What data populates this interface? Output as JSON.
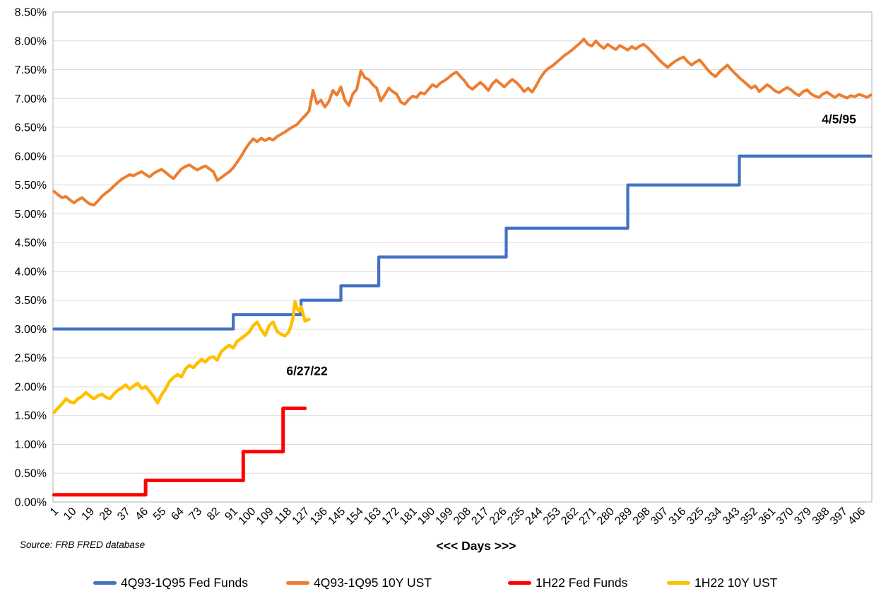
{
  "chart_data": {
    "type": "line",
    "title": "",
    "xlabel": "<<< Days >>>",
    "ylabel": "",
    "source": "Source: FRB FRED database",
    "grid": true,
    "legend_position": "bottom",
    "ylim": [
      0,
      8.5
    ],
    "xlim": [
      1,
      411
    ],
    "y_tick_labels": [
      "8.50%",
      "8.00%",
      "7.50%",
      "7.00%",
      "6.50%",
      "6.00%",
      "5.50%",
      "5.00%",
      "4.50%",
      "4.00%",
      "3.50%",
      "3.00%",
      "2.50%",
      "2.00%",
      "1.50%",
      "1.00%",
      "0.50%",
      "0.00%"
    ],
    "x_tick_labels": [
      1,
      10,
      19,
      28,
      37,
      46,
      55,
      64,
      73,
      82,
      91,
      100,
      109,
      118,
      127,
      136,
      145,
      154,
      163,
      172,
      181,
      190,
      199,
      208,
      217,
      226,
      235,
      244,
      253,
      262,
      271,
      280,
      289,
      298,
      307,
      316,
      325,
      334,
      343,
      352,
      361,
      370,
      379,
      388,
      397,
      406
    ],
    "annotations": [
      {
        "text": "4/5/95",
        "day": 395,
        "value": 6.63
      },
      {
        "text": "6/27/22",
        "day": 128,
        "value": 2.27
      }
    ],
    "series": [
      {
        "name": "4Q93-1Q95 Fed Funds",
        "color": "#4472C4",
        "width": 4.25,
        "kind": "step",
        "points": [
          [
            1,
            3.0
          ],
          [
            91,
            3.0
          ],
          [
            91,
            3.25
          ],
          [
            125,
            3.25
          ],
          [
            125,
            3.5
          ],
          [
            145,
            3.5
          ],
          [
            145,
            3.75
          ],
          [
            164,
            3.75
          ],
          [
            164,
            4.25
          ],
          [
            228,
            4.25
          ],
          [
            228,
            4.75
          ],
          [
            289,
            4.75
          ],
          [
            289,
            5.5
          ],
          [
            345,
            5.5
          ],
          [
            345,
            6.0
          ],
          [
            411,
            6.0
          ]
        ]
      },
      {
        "name": "4Q93-1Q95 10Y UST",
        "color": "#ED7D31",
        "width": 4,
        "kind": "line",
        "points": [
          [
            1,
            5.39
          ],
          [
            3,
            5.33
          ],
          [
            5,
            5.28
          ],
          [
            7,
            5.3
          ],
          [
            9,
            5.24
          ],
          [
            11,
            5.19
          ],
          [
            13,
            5.24
          ],
          [
            15,
            5.28
          ],
          [
            17,
            5.22
          ],
          [
            19,
            5.17
          ],
          [
            21,
            5.15
          ],
          [
            23,
            5.22
          ],
          [
            25,
            5.3
          ],
          [
            27,
            5.36
          ],
          [
            29,
            5.41
          ],
          [
            31,
            5.48
          ],
          [
            33,
            5.54
          ],
          [
            35,
            5.6
          ],
          [
            37,
            5.64
          ],
          [
            39,
            5.68
          ],
          [
            41,
            5.66
          ],
          [
            43,
            5.7
          ],
          [
            45,
            5.73
          ],
          [
            47,
            5.68
          ],
          [
            49,
            5.64
          ],
          [
            51,
            5.7
          ],
          [
            53,
            5.74
          ],
          [
            55,
            5.77
          ],
          [
            57,
            5.72
          ],
          [
            59,
            5.66
          ],
          [
            61,
            5.61
          ],
          [
            63,
            5.7
          ],
          [
            65,
            5.78
          ],
          [
            67,
            5.82
          ],
          [
            69,
            5.85
          ],
          [
            71,
            5.8
          ],
          [
            73,
            5.76
          ],
          [
            75,
            5.8
          ],
          [
            77,
            5.83
          ],
          [
            79,
            5.78
          ],
          [
            81,
            5.73
          ],
          [
            83,
            5.58
          ],
          [
            85,
            5.63
          ],
          [
            87,
            5.68
          ],
          [
            89,
            5.73
          ],
          [
            91,
            5.8
          ],
          [
            93,
            5.9
          ],
          [
            95,
            6.0
          ],
          [
            97,
            6.12
          ],
          [
            99,
            6.22
          ],
          [
            101,
            6.3
          ],
          [
            103,
            6.25
          ],
          [
            105,
            6.31
          ],
          [
            107,
            6.27
          ],
          [
            109,
            6.31
          ],
          [
            111,
            6.28
          ],
          [
            113,
            6.34
          ],
          [
            115,
            6.38
          ],
          [
            117,
            6.42
          ],
          [
            119,
            6.47
          ],
          [
            121,
            6.51
          ],
          [
            123,
            6.55
          ],
          [
            125,
            6.63
          ],
          [
            127,
            6.7
          ],
          [
            129,
            6.78
          ],
          [
            131,
            7.14
          ],
          [
            133,
            6.91
          ],
          [
            135,
            6.97
          ],
          [
            137,
            6.85
          ],
          [
            139,
            6.95
          ],
          [
            141,
            7.14
          ],
          [
            143,
            7.06
          ],
          [
            145,
            7.2
          ],
          [
            147,
            6.97
          ],
          [
            149,
            6.88
          ],
          [
            151,
            7.08
          ],
          [
            153,
            7.16
          ],
          [
            155,
            7.48
          ],
          [
            157,
            7.36
          ],
          [
            159,
            7.33
          ],
          [
            161,
            7.24
          ],
          [
            163,
            7.18
          ],
          [
            165,
            6.96
          ],
          [
            167,
            7.06
          ],
          [
            169,
            7.18
          ],
          [
            171,
            7.12
          ],
          [
            173,
            7.08
          ],
          [
            175,
            6.94
          ],
          [
            177,
            6.9
          ],
          [
            179,
            6.98
          ],
          [
            181,
            7.04
          ],
          [
            183,
            7.02
          ],
          [
            185,
            7.1
          ],
          [
            187,
            7.08
          ],
          [
            189,
            7.16
          ],
          [
            191,
            7.24
          ],
          [
            193,
            7.2
          ],
          [
            195,
            7.27
          ],
          [
            197,
            7.31
          ],
          [
            199,
            7.36
          ],
          [
            201,
            7.42
          ],
          [
            203,
            7.46
          ],
          [
            205,
            7.38
          ],
          [
            207,
            7.31
          ],
          [
            209,
            7.21
          ],
          [
            211,
            7.16
          ],
          [
            213,
            7.22
          ],
          [
            215,
            7.28
          ],
          [
            217,
            7.22
          ],
          [
            219,
            7.14
          ],
          [
            221,
            7.25
          ],
          [
            223,
            7.32
          ],
          [
            225,
            7.26
          ],
          [
            227,
            7.2
          ],
          [
            229,
            7.27
          ],
          [
            231,
            7.33
          ],
          [
            233,
            7.28
          ],
          [
            235,
            7.21
          ],
          [
            237,
            7.12
          ],
          [
            239,
            7.18
          ],
          [
            241,
            7.11
          ],
          [
            243,
            7.22
          ],
          [
            245,
            7.35
          ],
          [
            247,
            7.45
          ],
          [
            249,
            7.52
          ],
          [
            251,
            7.56
          ],
          [
            253,
            7.62
          ],
          [
            255,
            7.68
          ],
          [
            257,
            7.74
          ],
          [
            259,
            7.79
          ],
          [
            261,
            7.84
          ],
          [
            263,
            7.9
          ],
          [
            265,
            7.96
          ],
          [
            267,
            8.03
          ],
          [
            269,
            7.94
          ],
          [
            271,
            7.91
          ],
          [
            273,
            8.0
          ],
          [
            275,
            7.92
          ],
          [
            277,
            7.87
          ],
          [
            279,
            7.94
          ],
          [
            281,
            7.89
          ],
          [
            283,
            7.85
          ],
          [
            285,
            7.92
          ],
          [
            287,
            7.88
          ],
          [
            289,
            7.84
          ],
          [
            291,
            7.9
          ],
          [
            293,
            7.86
          ],
          [
            295,
            7.91
          ],
          [
            297,
            7.94
          ],
          [
            299,
            7.88
          ],
          [
            301,
            7.81
          ],
          [
            303,
            7.74
          ],
          [
            305,
            7.66
          ],
          [
            307,
            7.6
          ],
          [
            309,
            7.54
          ],
          [
            311,
            7.6
          ],
          [
            313,
            7.65
          ],
          [
            315,
            7.69
          ],
          [
            317,
            7.72
          ],
          [
            319,
            7.64
          ],
          [
            321,
            7.58
          ],
          [
            323,
            7.63
          ],
          [
            325,
            7.67
          ],
          [
            327,
            7.59
          ],
          [
            329,
            7.5
          ],
          [
            331,
            7.43
          ],
          [
            333,
            7.38
          ],
          [
            335,
            7.46
          ],
          [
            337,
            7.52
          ],
          [
            339,
            7.58
          ],
          [
            341,
            7.5
          ],
          [
            343,
            7.43
          ],
          [
            345,
            7.36
          ],
          [
            347,
            7.3
          ],
          [
            349,
            7.24
          ],
          [
            351,
            7.18
          ],
          [
            353,
            7.22
          ],
          [
            355,
            7.12
          ],
          [
            357,
            7.18
          ],
          [
            359,
            7.24
          ],
          [
            361,
            7.19
          ],
          [
            363,
            7.13
          ],
          [
            365,
            7.1
          ],
          [
            367,
            7.15
          ],
          [
            369,
            7.19
          ],
          [
            371,
            7.15
          ],
          [
            373,
            7.09
          ],
          [
            375,
            7.05
          ],
          [
            377,
            7.12
          ],
          [
            379,
            7.15
          ],
          [
            381,
            7.08
          ],
          [
            383,
            7.04
          ],
          [
            385,
            7.02
          ],
          [
            387,
            7.08
          ],
          [
            389,
            7.11
          ],
          [
            391,
            7.06
          ],
          [
            393,
            7.02
          ],
          [
            395,
            7.07
          ],
          [
            397,
            7.04
          ],
          [
            399,
            7.01
          ],
          [
            401,
            7.05
          ],
          [
            403,
            7.03
          ],
          [
            405,
            7.07
          ],
          [
            407,
            7.05
          ],
          [
            409,
            7.02
          ],
          [
            411,
            7.06
          ]
        ]
      },
      {
        "name": "1H22 Fed Funds",
        "color": "#FF0000",
        "width": 5,
        "kind": "step",
        "points": [
          [
            1,
            0.125
          ],
          [
            47,
            0.125
          ],
          [
            47,
            0.375
          ],
          [
            96,
            0.375
          ],
          [
            96,
            0.875
          ],
          [
            116,
            0.875
          ],
          [
            116,
            1.625
          ],
          [
            127,
            1.625
          ]
        ]
      },
      {
        "name": "1H22 10Y UST",
        "color": "#FFC000",
        "width": 4.5,
        "kind": "line",
        "points": [
          [
            1,
            1.55
          ],
          [
            3,
            1.63
          ],
          [
            5,
            1.7
          ],
          [
            7,
            1.79
          ],
          [
            9,
            1.74
          ],
          [
            11,
            1.72
          ],
          [
            13,
            1.79
          ],
          [
            15,
            1.83
          ],
          [
            17,
            1.9
          ],
          [
            19,
            1.84
          ],
          [
            21,
            1.79
          ],
          [
            23,
            1.84
          ],
          [
            25,
            1.87
          ],
          [
            27,
            1.82
          ],
          [
            29,
            1.79
          ],
          [
            31,
            1.87
          ],
          [
            33,
            1.94
          ],
          [
            35,
            1.98
          ],
          [
            37,
            2.03
          ],
          [
            39,
            1.96
          ],
          [
            41,
            2.01
          ],
          [
            43,
            2.06
          ],
          [
            45,
            1.97
          ],
          [
            47,
            2.0
          ],
          [
            49,
            1.92
          ],
          [
            51,
            1.83
          ],
          [
            53,
            1.72
          ],
          [
            55,
            1.86
          ],
          [
            57,
            1.96
          ],
          [
            59,
            2.09
          ],
          [
            61,
            2.16
          ],
          [
            63,
            2.21
          ],
          [
            65,
            2.17
          ],
          [
            67,
            2.31
          ],
          [
            69,
            2.37
          ],
          [
            71,
            2.33
          ],
          [
            73,
            2.41
          ],
          [
            75,
            2.47
          ],
          [
            77,
            2.43
          ],
          [
            79,
            2.5
          ],
          [
            81,
            2.52
          ],
          [
            83,
            2.46
          ],
          [
            85,
            2.61
          ],
          [
            87,
            2.67
          ],
          [
            89,
            2.72
          ],
          [
            91,
            2.67
          ],
          [
            93,
            2.79
          ],
          [
            95,
            2.84
          ],
          [
            97,
            2.89
          ],
          [
            99,
            2.95
          ],
          [
            101,
            3.06
          ],
          [
            103,
            3.12
          ],
          [
            105,
            2.99
          ],
          [
            107,
            2.89
          ],
          [
            109,
            3.06
          ],
          [
            111,
            3.12
          ],
          [
            113,
            2.96
          ],
          [
            115,
            2.91
          ],
          [
            117,
            2.88
          ],
          [
            119,
            2.96
          ],
          [
            120,
            3.06
          ],
          [
            121,
            3.21
          ],
          [
            122,
            3.48
          ],
          [
            123,
            3.36
          ],
          [
            124,
            3.31
          ],
          [
            125,
            3.39
          ],
          [
            126,
            3.26
          ],
          [
            127,
            3.14
          ],
          [
            129,
            3.17
          ]
        ]
      }
    ]
  }
}
